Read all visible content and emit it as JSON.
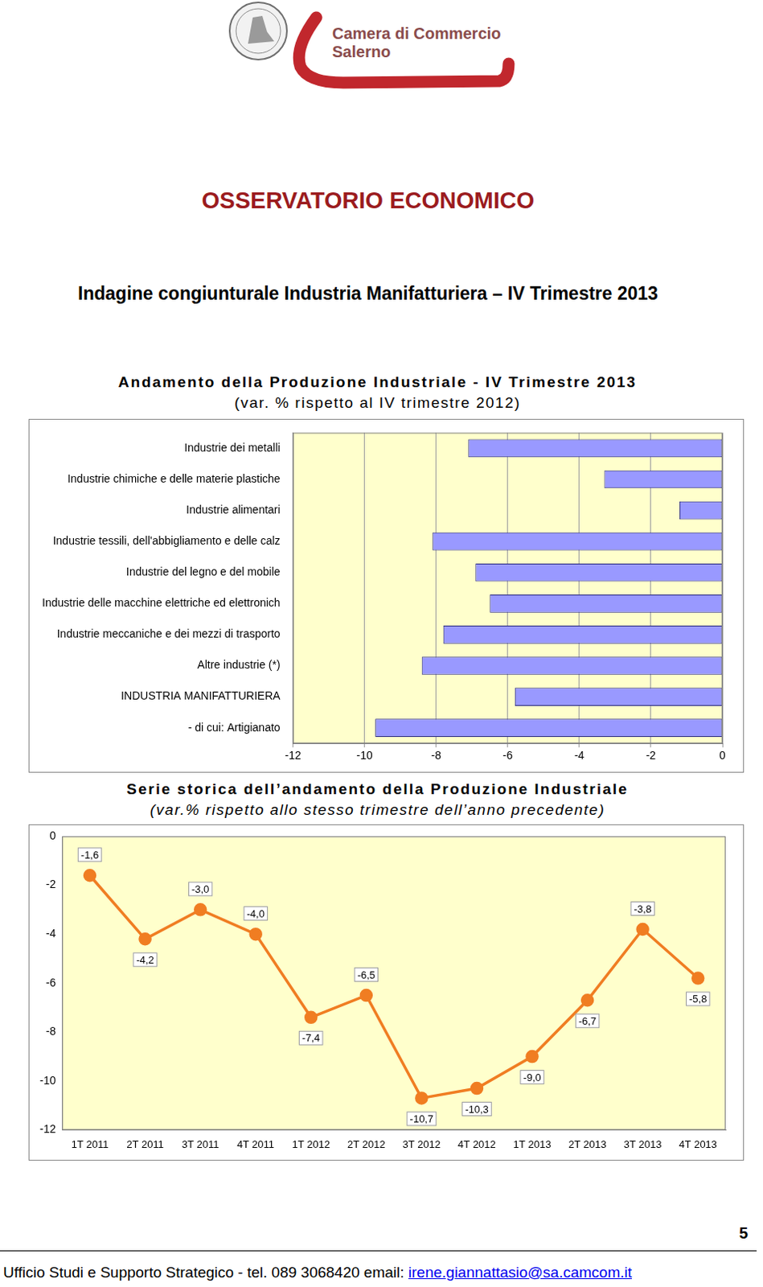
{
  "header": {
    "organization": [
      "Camera di Commercio",
      "Salerno"
    ]
  },
  "title": "OSSERVATORIO ECONOMICO",
  "subtitle": "Indagine congiunturale Industria Manifatturiera – IV Trimestre 2013",
  "chart_data": [
    {
      "type": "bar",
      "orientation": "horizontal",
      "title": "Andamento della Produzione Industriale - IV Trimestre 2013",
      "subtitle": "(var. % rispetto al IV trimestre 2012)",
      "categories": [
        "Industrie dei metalli",
        "Industrie chimiche e delle materie plastiche",
        "Industrie alimentari",
        "Industrie tessili, dell'abbigliamento e delle calz",
        "Industrie del legno e del mobile",
        "Industrie delle macchine elettriche ed elettronich",
        "Industrie meccaniche e dei mezzi di trasporto",
        "Altre industrie (*)",
        "INDUSTRIA MANIFATTURIERA",
        "- di cui: Artigianato"
      ],
      "values": [
        -7.1,
        -3.3,
        -1.2,
        -8.1,
        -6.9,
        -6.5,
        -7.8,
        -8.4,
        -5.8,
        -9.7
      ],
      "color": "#9999ff",
      "xlim": [
        -12,
        0
      ],
      "xticks": [
        -12,
        -10,
        -8,
        -6,
        -4,
        -2,
        0
      ],
      "grid": true
    },
    {
      "type": "line",
      "title": "Serie storica dell’andamento della Produzione Industriale",
      "subtitle": "(var.% rispetto allo stesso trimestre dell’anno precedente)",
      "categories": [
        "1T 2011",
        "2T 2011",
        "3T 2011",
        "4T 2011",
        "1T 2012",
        "2T 2012",
        "3T 2012",
        "4T 2012",
        "1T 2013",
        "2T 2013",
        "3T 2013",
        "4T 2013"
      ],
      "values": [
        -1.6,
        -4.2,
        -3.0,
        -4.0,
        -7.4,
        -6.5,
        -10.7,
        -10.3,
        -9.0,
        -6.7,
        -3.8,
        -5.8
      ],
      "value_labels": [
        "-1,6",
        "-4,2",
        "-3,0",
        "-4,0",
        "-7,4",
        "-6,5",
        "-10,7",
        "-10,3",
        "-9,0",
        "-6,7",
        "-3,8",
        "-5,8"
      ],
      "color": "#f07d22",
      "marker": "circle",
      "ylim": [
        -12,
        0
      ],
      "yticks": [
        -12,
        -10,
        -8,
        -6,
        -4,
        -2,
        0
      ],
      "grid": false,
      "data_labels": true
    }
  ],
  "footer": {
    "text": "Ufficio Studi e Supporto Strategico - tel. 089 3068420 email:",
    "email": "irene.giannattasio@sa.camcom.it",
    "page": 5
  }
}
